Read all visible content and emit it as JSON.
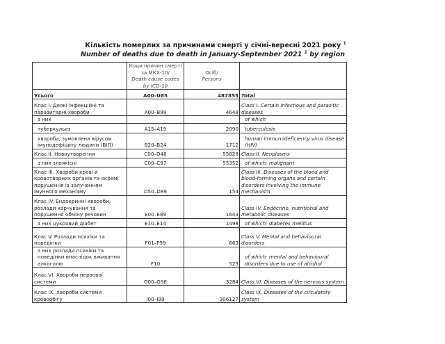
{
  "title_ua": "Кількість померлих за причинами смерті у січні-вересні 2021 року",
  "title_en_before": "Number of deaths due to death in January-September 2021",
  "title_en_after": "by region",
  "footnote_mark": "1",
  "header": {
    "codes_ua": "Коди причин смерті за МКХ-10/",
    "codes_en": "Death cause codes by ICD-10",
    "persons_ua": "Осіб/",
    "persons_en": "Persons"
  },
  "rows": [
    {
      "ua": "Усього",
      "code": "A00–U85",
      "value": "487855",
      "en": "Total",
      "bold": true
    },
    {
      "ua": "Клас I. Деякі інфекційні та паразитарні хвороби",
      "code": "A00–B99",
      "value": "4648",
      "en": "Class I. Certain infectious and parasitic diseases"
    },
    {
      "ua": "з них",
      "code": "",
      "value": "",
      "en": "of which",
      "indent": true
    },
    {
      "ua": "туберкульоз",
      "code": "A15–A19",
      "value": "2090",
      "en": "tuberculosis",
      "indent": true
    },
    {
      "ua": "хвороба, зумовлена вірусом імунодефіциту людини (ВІЛ)",
      "code": "B20–B24",
      "value": "1712",
      "en": "human immunodeficiency virus disease (HIV)",
      "indent": true
    },
    {
      "ua": "Клас II. Новоутворення",
      "code": "C00–D48",
      "value": "55828",
      "en": "Class II. Neoplasms"
    },
    {
      "ua": "з них злоякісні",
      "code": "C00–C97",
      "value": "55352",
      "en": "of which: malignant",
      "indent": true
    },
    {
      "ua": "Клас III. Хвороби крові й кровотворних органів та окремі порушення із залученням імунного механізму",
      "code": "D50–D89",
      "value": "154",
      "en": "Class III. Diseases of the blood and blood-forming organs and certain disorders involving the immune mechanism"
    },
    {
      "ua": "Клас IV. Ендокринні хвороби, розлади харчування та порушення обміну речовин",
      "code": "E00–E89",
      "value": "1643",
      "en": "Class IV. Endocrine, nutritional and metabolic diseases"
    },
    {
      "ua": "з них цукровий діабет",
      "code": "E10–E14",
      "value": "1498",
      "en": "of which: diabetes mellitus",
      "indent": true
    },
    {
      "ua": "Клас V. Розлади психіки та поведінки",
      "code": "F01–F99",
      "value": "663",
      "en": "Class V. Mental and behavioural disorders"
    },
    {
      "ua": "з них розлади психіки та поведінки внаслідок вживання алкоголю",
      "code": "F10",
      "value": "523",
      "en": "of which: mental and behavioural disorders due to use of alcohol",
      "indent": true
    },
    {
      "ua": "Клас VI. Хвороби нервової системи",
      "code": "G00–G98",
      "value": "3284",
      "en": "Class VI. Diseases of the nervous system"
    },
    {
      "ua": "Клас IX. Хвороби системи кровообігу",
      "code": "I00–I99",
      "value": "306127",
      "en": "Class IX. Diseases of the circulatory system"
    }
  ]
}
